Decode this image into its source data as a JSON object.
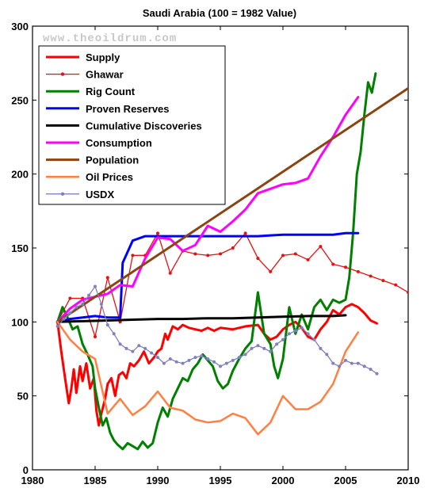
{
  "chart_data": {
    "type": "line",
    "title": "Saudi Arabia (100 = 1982 Value)",
    "watermark": "www.theoildrum.com",
    "xlabel": "",
    "ylabel": "",
    "xlim": [
      1980,
      2010
    ],
    "ylim": [
      0,
      300
    ],
    "x_ticks": [
      1980,
      1985,
      1990,
      1995,
      2000,
      2005,
      2010
    ],
    "y_ticks": [
      0,
      50,
      100,
      150,
      200,
      250,
      300
    ],
    "grid": false,
    "legend_position": "top-left",
    "series": [
      {
        "name": "Supply",
        "color": "#ff0000",
        "width": 3,
        "marker": false,
        "x": [
          1982,
          1982.3,
          1982.6,
          1982.9,
          1983.1,
          1983.3,
          1983.5,
          1983.8,
          1984.0,
          1984.3,
          1984.6,
          1984.9,
          1985.1,
          1985.3,
          1985.5,
          1985.8,
          1986.0,
          1986.3,
          1986.6,
          1986.9,
          1987.2,
          1987.5,
          1987.8,
          1988.1,
          1988.5,
          1988.9,
          1989.3,
          1989.7,
          1990.0,
          1990.3,
          1990.6,
          1990.8,
          1991.2,
          1991.6,
          1992.0,
          1992.5,
          1993.0,
          1993.5,
          1994.0,
          1994.5,
          1995.0,
          1996.0,
          1997.0,
          1998.0,
          1998.5,
          1999.0,
          1999.5,
          2000.0,
          2000.5,
          2001.0,
          2001.5,
          2002.0,
          2002.5,
          2003.0,
          2003.5,
          2004.0,
          2004.5,
          2005.0,
          2005.5,
          2006.0,
          2006.5,
          2007.0,
          2007.5
        ],
        "y": [
          100,
          80,
          62,
          45,
          55,
          68,
          52,
          70,
          60,
          72,
          55,
          62,
          40,
          30,
          38,
          48,
          58,
          62,
          50,
          64,
          66,
          62,
          72,
          70,
          74,
          80,
          72,
          76,
          80,
          82,
          92,
          88,
          97,
          95,
          98,
          96,
          95,
          94,
          96,
          94,
          96,
          95,
          97,
          98,
          92,
          88,
          90,
          95,
          98,
          100,
          96,
          90,
          88,
          95,
          100,
          108,
          105,
          110,
          112,
          110,
          106,
          101,
          99
        ]
      },
      {
        "name": "Ghawar",
        "color": "#e81010",
        "width": 1.3,
        "marker": true,
        "x": [
          1982,
          1983,
          1984,
          1985,
          1986,
          1987,
          1988,
          1989,
          1990,
          1991,
          1992,
          1993,
          1994,
          1995,
          1996,
          1997,
          1998,
          1999,
          2000,
          2001,
          2002,
          2003,
          2004,
          2005,
          2006,
          2007,
          2008,
          2009,
          2010
        ],
        "y": [
          100,
          116,
          116,
          90,
          130,
          100,
          145,
          145,
          160,
          133,
          148,
          146,
          145,
          146,
          150,
          160,
          143,
          134,
          145,
          146,
          142,
          151,
          139,
          137,
          134,
          131,
          128,
          125,
          120
        ]
      },
      {
        "name": "Rig Count",
        "color": "#008000",
        "width": 3,
        "marker": false,
        "x": [
          1982,
          1982.4,
          1982.8,
          1983.2,
          1983.6,
          1984.0,
          1984.4,
          1984.8,
          1985.0,
          1985.3,
          1985.6,
          1985.9,
          1986.2,
          1986.5,
          1986.8,
          1987.2,
          1987.6,
          1988.0,
          1988.4,
          1988.8,
          1989.2,
          1989.6,
          1990.0,
          1990.4,
          1990.8,
          1991.2,
          1991.6,
          1992.0,
          1992.4,
          1992.8,
          1993.2,
          1993.6,
          1994.0,
          1994.4,
          1994.8,
          1995.2,
          1995.6,
          1996.0,
          1996.5,
          1997.0,
          1997.5,
          1998.0,
          1998.5,
          1999.0,
          1999.3,
          1999.6,
          2000.0,
          2000.5,
          2001.0,
          2001.5,
          2002.0,
          2002.5,
          2003.0,
          2003.5,
          2004.0,
          2004.5,
          2005.0,
          2005.3,
          2005.6,
          2005.9,
          2006.2,
          2006.5,
          2006.8,
          2007.1,
          2007.4
        ],
        "y": [
          100,
          110,
          103,
          95,
          97,
          85,
          78,
          70,
          55,
          42,
          30,
          35,
          25,
          20,
          17,
          14,
          18,
          16,
          14,
          19,
          15,
          18,
          32,
          42,
          36,
          48,
          55,
          62,
          60,
          68,
          72,
          78,
          74,
          70,
          60,
          55,
          58,
          67,
          75,
          82,
          87,
          120,
          92,
          85,
          70,
          62,
          75,
          110,
          92,
          105,
          95,
          110,
          115,
          108,
          115,
          113,
          115,
          130,
          160,
          200,
          215,
          240,
          262,
          255,
          268
        ]
      },
      {
        "name": "Proven Reserves",
        "color": "#0000ff",
        "width": 3,
        "marker": false,
        "x": [
          1982,
          1983,
          1984,
          1985,
          1986,
          1987,
          1987.2,
          1988,
          1989,
          1990,
          1991,
          1992,
          1993,
          1994,
          1995,
          1996,
          1997,
          1998,
          1999,
          2000,
          2001,
          2002,
          2003,
          2004,
          2005,
          2006
        ],
        "y": [
          100,
          102,
          103,
          104,
          103,
          103,
          140,
          155,
          158,
          158,
          158,
          158,
          158,
          158,
          158,
          158,
          158,
          158,
          158.5,
          159,
          159,
          159,
          159,
          159,
          160,
          160
        ]
      },
      {
        "name": "Cumulative Discoveries",
        "color": "#000000",
        "width": 3,
        "marker": false,
        "x": [
          1982,
          1984,
          1986,
          1988,
          1990,
          1992,
          1994,
          1996,
          1998,
          2000,
          2002,
          2004,
          2005
        ],
        "y": [
          100,
          100.5,
          101,
          101.5,
          102,
          102,
          102.5,
          102.5,
          103,
          103.5,
          104,
          104,
          104.5
        ]
      },
      {
        "name": "Consumption",
        "color": "#ff00ff",
        "width": 3,
        "marker": false,
        "x": [
          1982,
          1983,
          1984,
          1985,
          1986,
          1987,
          1988,
          1989,
          1990,
          1991,
          1992,
          1993,
          1994,
          1995,
          1996,
          1997,
          1998,
          1999,
          2000,
          2001,
          2002,
          2003,
          2004,
          2005,
          2006
        ],
        "y": [
          100,
          109,
          115,
          117,
          119,
          125,
          124,
          143,
          157,
          156,
          148,
          152,
          165,
          161,
          168,
          176,
          187,
          190,
          193,
          194,
          197,
          212,
          225,
          240,
          252
        ]
      },
      {
        "name": "Population",
        "color": "#8b4513",
        "width": 3,
        "marker": false,
        "x": [
          1982,
          2010
        ],
        "y": [
          100,
          258
        ]
      },
      {
        "name": "Oil Prices",
        "color": "#ff8040",
        "width": 2.5,
        "marker": false,
        "x": [
          1982,
          1983,
          1984,
          1985,
          1986,
          1987,
          1988,
          1989,
          1990,
          1991,
          1992,
          1993,
          1994,
          1995,
          1996,
          1997,
          1998,
          1999,
          2000,
          2001,
          2002,
          2003,
          2004,
          2005,
          2006
        ],
        "y": [
          100,
          88,
          80,
          75,
          38,
          48,
          37,
          43,
          53,
          42,
          40,
          34,
          32,
          33,
          38,
          35,
          24,
          32,
          50,
          41,
          41,
          46,
          58,
          80,
          93
        ]
      },
      {
        "name": "USDX",
        "color": "#8080c0",
        "width": 1.3,
        "marker": true,
        "x": [
          1982,
          1982.5,
          1983,
          1983.5,
          1984,
          1984.5,
          1985,
          1985.5,
          1986,
          1986.5,
          1987,
          1987.5,
          1988,
          1988.5,
          1989,
          1989.5,
          1990,
          1990.5,
          1991,
          1991.5,
          1992,
          1992.5,
          1993,
          1993.5,
          1994,
          1994.5,
          1995,
          1995.5,
          1996,
          1996.5,
          1997,
          1997.5,
          1998,
          1998.5,
          1999,
          1999.5,
          2000,
          2000.5,
          2001,
          2001.5,
          2002,
          2002.5,
          2003,
          2003.5,
          2004,
          2004.5,
          2005,
          2005.5,
          2006,
          2006.5,
          2007,
          2007.5
        ],
        "y": [
          97,
          102,
          106,
          110,
          112,
          118,
          124,
          112,
          98,
          92,
          85,
          82,
          80,
          84,
          82,
          79,
          76,
          72,
          75,
          73,
          72,
          74,
          76,
          77,
          75,
          73,
          70,
          72,
          74,
          76,
          78,
          82,
          84,
          82,
          80,
          85,
          88,
          92,
          94,
          96,
          92,
          88,
          82,
          78,
          72,
          70,
          74,
          72,
          72,
          70,
          68,
          65
        ]
      }
    ]
  }
}
